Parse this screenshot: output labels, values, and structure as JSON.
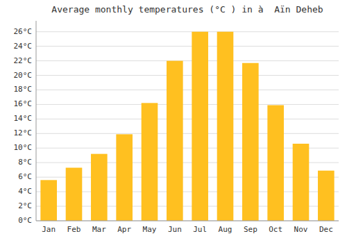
{
  "chart_data": {
    "type": "bar",
    "title": "Average monthly temperatures (°C ) in à  Aïn Deheb",
    "categories": [
      "Jan",
      "Feb",
      "Mar",
      "Apr",
      "May",
      "Jun",
      "Jul",
      "Aug",
      "Sep",
      "Oct",
      "Nov",
      "Dec"
    ],
    "values": [
      5.6,
      7.3,
      9.2,
      11.9,
      16.2,
      22.0,
      26.0,
      26.0,
      21.7,
      15.9,
      10.6,
      6.9
    ],
    "color": "#FFC020",
    "ylim": [
      0,
      27.5
    ],
    "yticks": [
      {
        "value": 0,
        "label": "0°C"
      },
      {
        "value": 2,
        "label": "2°C"
      },
      {
        "value": 4,
        "label": "4°C"
      },
      {
        "value": 6,
        "label": "6°C"
      },
      {
        "value": 8,
        "label": "8°C"
      },
      {
        "value": 10,
        "label": "10°C"
      },
      {
        "value": 12,
        "label": "12°C"
      },
      {
        "value": 14,
        "label": "14°C"
      },
      {
        "value": 16,
        "label": "16°C"
      },
      {
        "value": 18,
        "label": "18°C"
      },
      {
        "value": 20,
        "label": "20°C"
      },
      {
        "value": 22,
        "label": "22°C"
      },
      {
        "value": 24,
        "label": "24°C"
      },
      {
        "value": 26,
        "label": "26°C"
      }
    ],
    "grid": true
  }
}
